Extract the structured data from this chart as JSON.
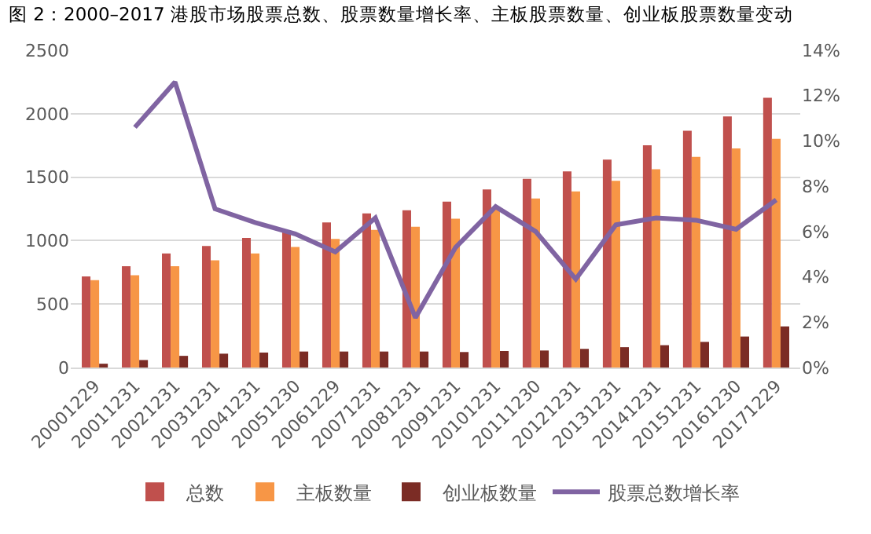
{
  "chart_data": {
    "type": "bar",
    "title": "图 2：2000–2017 港股市场股票总数、股票数量增长率、主板股票数量、创业板股票数量变动",
    "categories": [
      "20001229",
      "20011231",
      "20021231",
      "20031231",
      "20041231",
      "20051230",
      "20061229",
      "20071231",
      "20081231",
      "20091231",
      "20101231",
      "20111230",
      "20121231",
      "20131231",
      "20141231",
      "20151231",
      "20161230",
      "20171229"
    ],
    "series": [
      {
        "name": "总数",
        "color": "#c0504d",
        "values": [
          718,
          798,
          899,
          958,
          1021,
          1080,
          1143,
          1214,
          1239,
          1307,
          1403,
          1487,
          1546,
          1639,
          1752,
          1866,
          1979,
          2126
        ]
      },
      {
        "name": "主板数量",
        "color": "#f79646",
        "values": [
          689,
          727,
          798,
          845,
          899,
          950,
          1013,
          1084,
          1109,
          1172,
          1245,
          1332,
          1387,
          1471,
          1563,
          1660,
          1727,
          1803
        ]
      },
      {
        "name": "创业板数量",
        "color": "#7b2c25",
        "values": [
          30,
          59,
          92,
          109,
          118,
          126,
          126,
          126,
          126,
          122,
          130,
          134,
          147,
          160,
          176,
          202,
          244,
          324
        ]
      },
      {
        "name": "股票总数增长率",
        "type": "line",
        "axis": "y2",
        "color": "#8064a2",
        "values": [
          null,
          10.6,
          12.6,
          7.0,
          6.4,
          5.9,
          5.1,
          6.6,
          2.2,
          5.3,
          7.1,
          6.0,
          3.9,
          6.3,
          6.6,
          6.5,
          6.1,
          7.4
        ]
      }
    ],
    "ylim": [
      0,
      2500
    ],
    "yticks": [
      0,
      500,
      1000,
      1500,
      2000,
      2500
    ],
    "y2lim": [
      0,
      14
    ],
    "y2ticks": [
      {
        "value": 0,
        "label": "0%"
      },
      {
        "value": 2,
        "label": "2%"
      },
      {
        "value": 4,
        "label": "4%"
      },
      {
        "value": 6,
        "label": "6%"
      },
      {
        "value": 8,
        "label": "8%"
      },
      {
        "value": 10,
        "label": "10%"
      },
      {
        "value": 12,
        "label": "12%"
      },
      {
        "value": 14,
        "label": "14%"
      }
    ],
    "grid": "y",
    "legend": "bottom",
    "marker": "none",
    "line_style": "solid"
  }
}
